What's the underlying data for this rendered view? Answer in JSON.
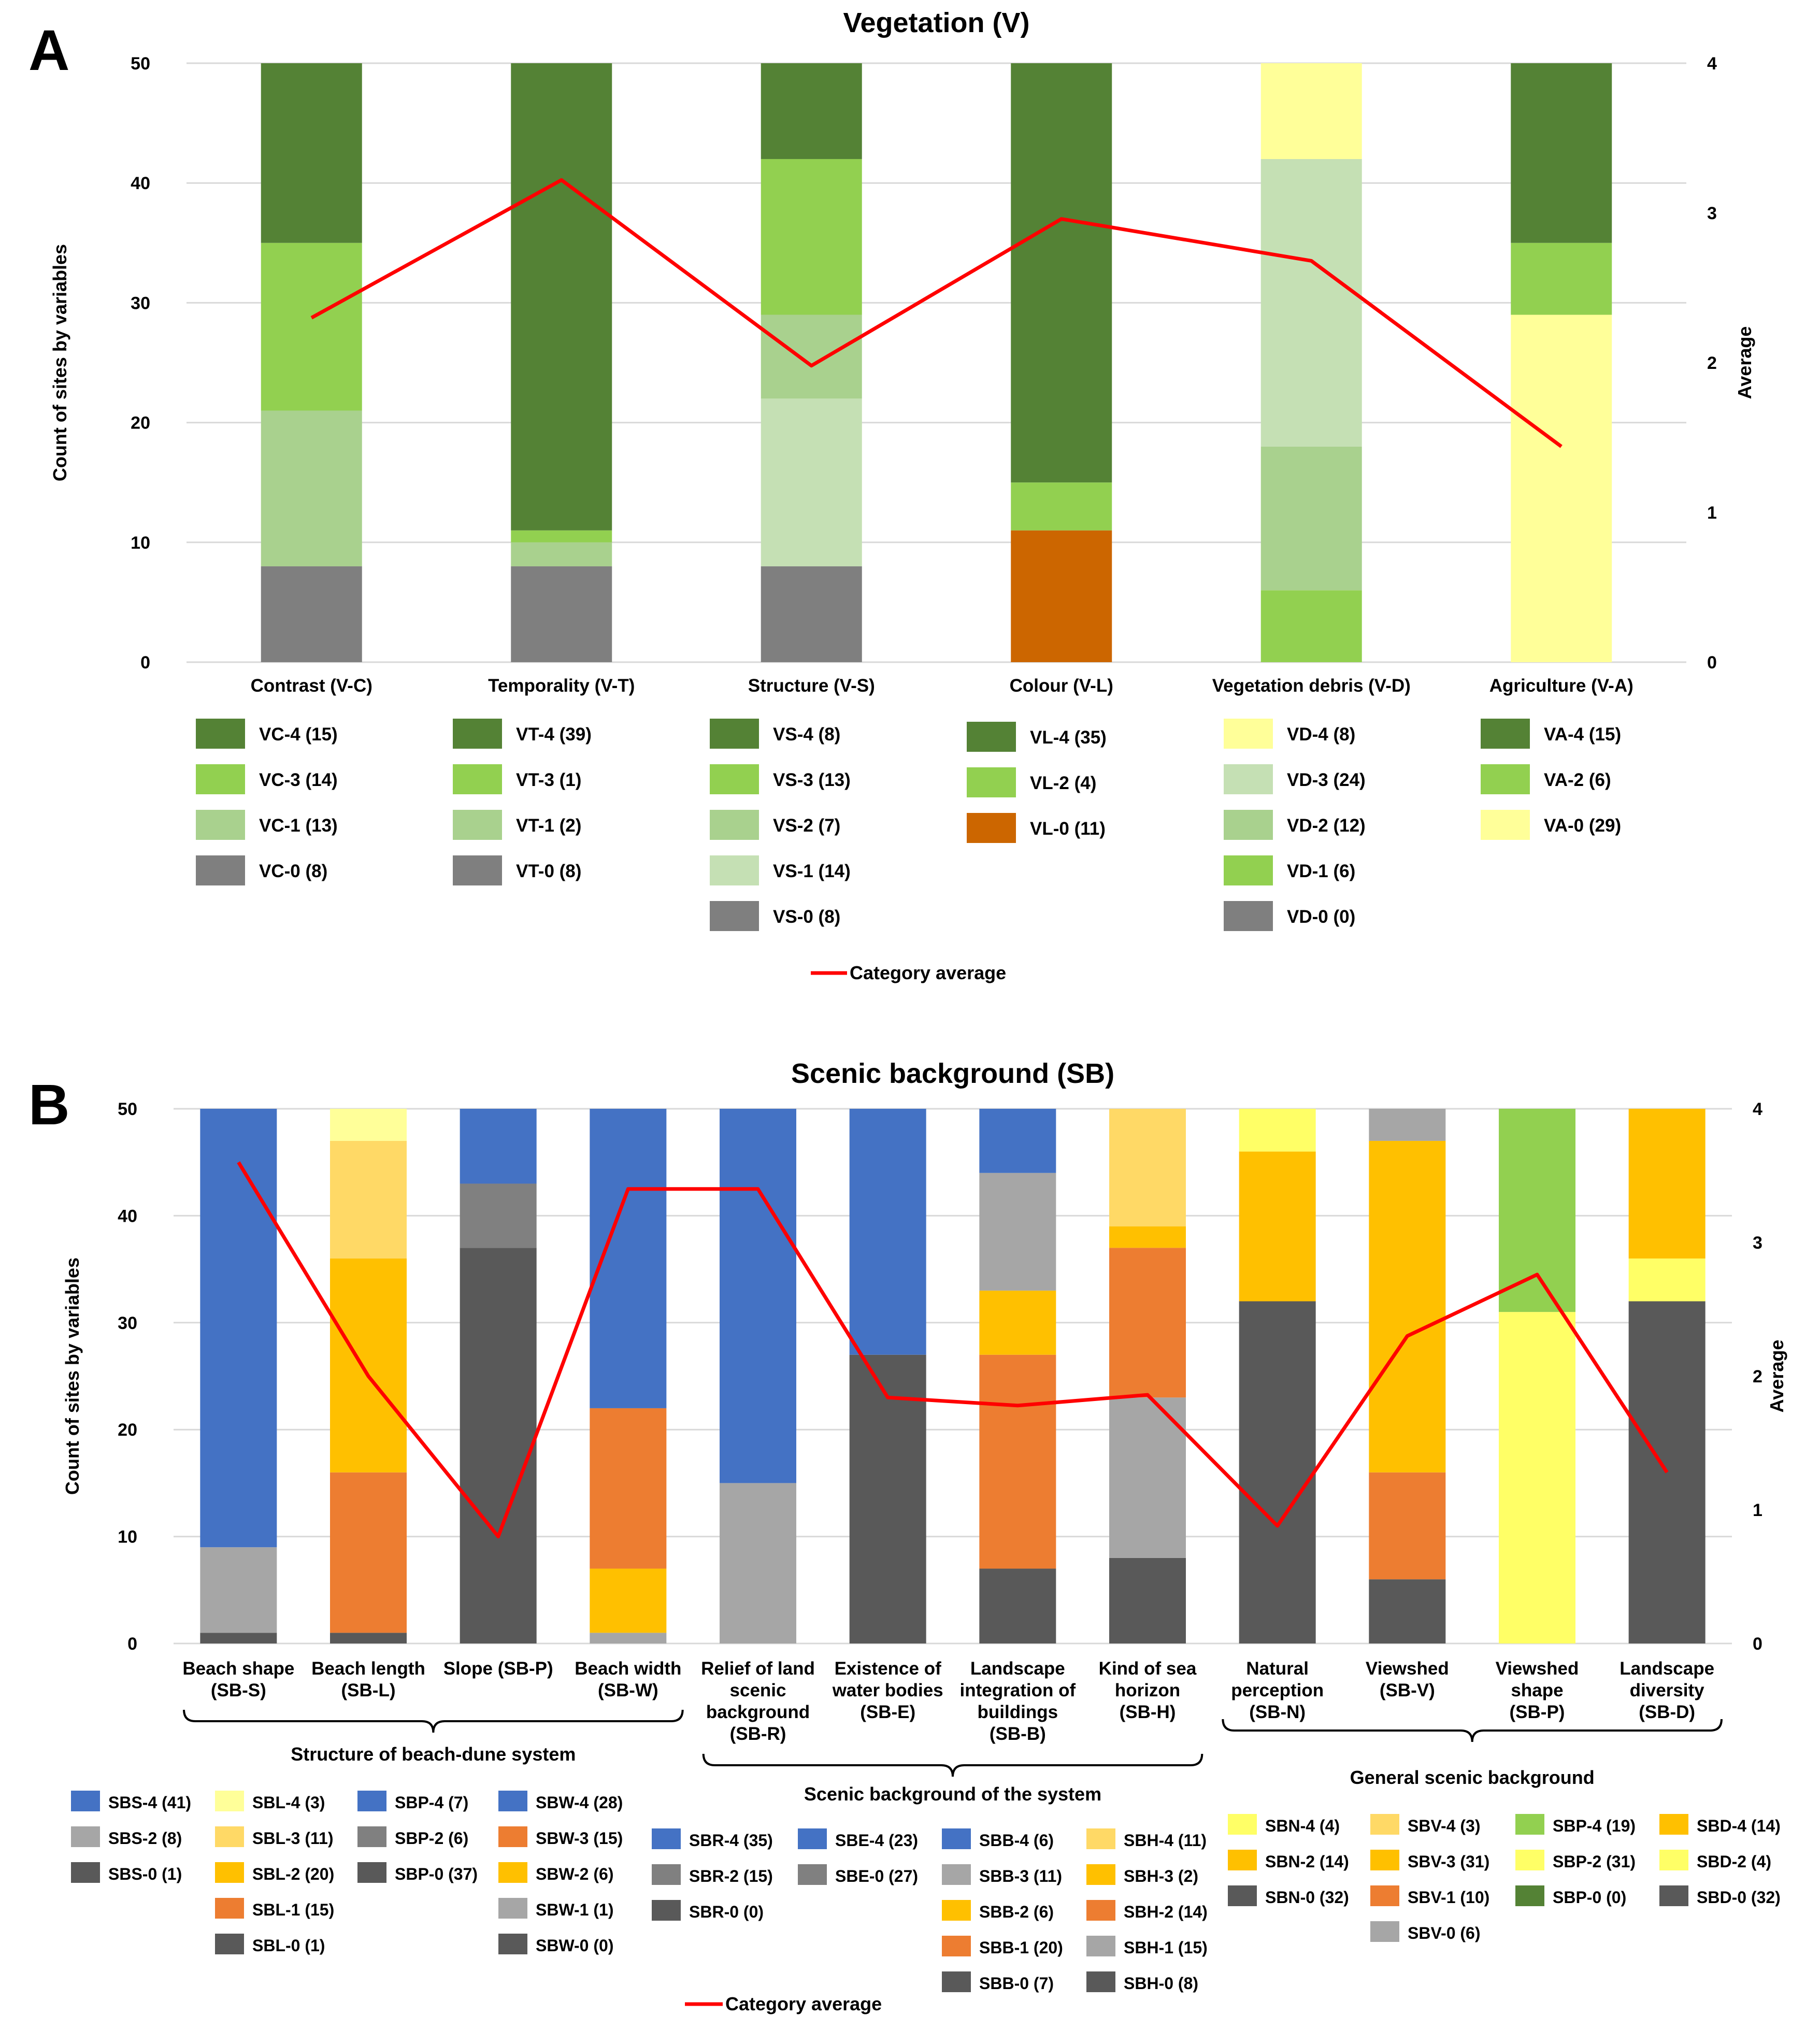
{
  "colors": {
    "green_dark": "#548235",
    "green_mid": "#92d050",
    "green_light": "#a9d18e",
    "green_pale": "#c5e0b4",
    "grey": "#7f7f7f",
    "grey_dark": "#595959",
    "grey_mid": "#808080",
    "grey_light": "#a6a6a6",
    "orange_brown": "#cc6600",
    "yellow_pale": "#ffff99",
    "blue": "#4472c4",
    "orange": "#ed7d31",
    "gold": "#ffc000",
    "gold_light": "#ffd966",
    "yellow": "#ffff66",
    "avg_line": "#ff0000",
    "gridline": "#d9d9d9",
    "text": "#000000"
  },
  "panels": {
    "A": {
      "label": "A"
    },
    "B": {
      "label": "B"
    }
  },
  "legend_line_label": "Category average",
  "chart_data": [
    {
      "id": "A",
      "type": "bar",
      "stacked": true,
      "title": "Vegetation (V)",
      "ylabel": "Count of sites by variables",
      "y2label": "Average",
      "ylim": [
        0,
        50
      ],
      "yticks": [
        0,
        10,
        20,
        30,
        40,
        50
      ],
      "y2lim": [
        0,
        4
      ],
      "y2ticks": [
        0,
        1,
        2,
        3,
        4
      ],
      "grid": true,
      "categories": [
        {
          "label": [
            "Contrast (V-C)"
          ],
          "average": 2.3,
          "segments": [
            {
              "name": "VC-0 (8)",
              "value": 8,
              "color": "grey"
            },
            {
              "name": "VC-1 (13)",
              "value": 13,
              "color": "green_light"
            },
            {
              "name": "VC-3 (14)",
              "value": 14,
              "color": "green_mid"
            },
            {
              "name": "VC-4 (15)",
              "value": 15,
              "color": "green_dark"
            }
          ]
        },
        {
          "label": [
            "Temporality (V-T)"
          ],
          "average": 3.22,
          "segments": [
            {
              "name": "VT-0 (8)",
              "value": 8,
              "color": "grey"
            },
            {
              "name": "VT-1 (2)",
              "value": 2,
              "color": "green_light"
            },
            {
              "name": "VT-3 (1)",
              "value": 1,
              "color": "green_mid"
            },
            {
              "name": "VT-4 (39)",
              "value": 39,
              "color": "green_dark"
            }
          ]
        },
        {
          "label": [
            "Structure (V-S)"
          ],
          "average": 1.98,
          "segments": [
            {
              "name": "VS-0 (8)",
              "value": 8,
              "color": "grey"
            },
            {
              "name": "VS-1 (14)",
              "value": 14,
              "color": "green_pale"
            },
            {
              "name": "VS-2 (7)",
              "value": 7,
              "color": "green_light"
            },
            {
              "name": "VS-3 (13)",
              "value": 13,
              "color": "green_mid"
            },
            {
              "name": "VS-4 (8)",
              "value": 8,
              "color": "green_dark"
            }
          ]
        },
        {
          "label": [
            "Colour (V-L)"
          ],
          "average": 2.96,
          "segments": [
            {
              "name": "VL-0 (11)",
              "value": 11,
              "color": "orange_brown"
            },
            {
              "name": "VL-2 (4)",
              "value": 4,
              "color": "green_mid"
            },
            {
              "name": "VL-4 (35)",
              "value": 35,
              "color": "green_dark"
            }
          ]
        },
        {
          "label": [
            "Vegetation debris (V-D)"
          ],
          "average": 2.68,
          "segments": [
            {
              "name": "VD-0 (0)",
              "value": 0,
              "color": "grey"
            },
            {
              "name": "VD-1 (6)",
              "value": 6,
              "color": "green_mid"
            },
            {
              "name": "VD-2 (12)",
              "value": 12,
              "color": "green_light"
            },
            {
              "name": "VD-3 (24)",
              "value": 24,
              "color": "green_pale"
            },
            {
              "name": "VD-4 (8)",
              "value": 8,
              "color": "yellow_pale"
            }
          ]
        },
        {
          "label": [
            "Agriculture (V-A)"
          ],
          "average": 1.44,
          "segments": [
            {
              "name": "VA-0 (29)",
              "value": 29,
              "color": "yellow_pale"
            },
            {
              "name": "VA-2 (6)",
              "value": 6,
              "color": "green_mid"
            },
            {
              "name": "VA-4 (15)",
              "value": 15,
              "color": "green_dark"
            }
          ]
        }
      ]
    },
    {
      "id": "B",
      "type": "bar",
      "stacked": true,
      "title": "Scenic background (SB)",
      "ylabel": "Count of sites by variables",
      "y2label": "Average",
      "ylim": [
        0,
        50
      ],
      "yticks": [
        0,
        10,
        20,
        30,
        40,
        50
      ],
      "y2lim": [
        0,
        4
      ],
      "y2ticks": [
        0,
        1,
        2,
        3,
        4
      ],
      "grid": true,
      "groups": [
        {
          "label": "Structure of beach-dune system",
          "from": 0,
          "to": 3
        },
        {
          "label": "Scenic background of the system",
          "from": 4,
          "to": 7
        },
        {
          "label": "General scenic background",
          "from": 8,
          "to": 11
        }
      ],
      "categories": [
        {
          "label": [
            "Beach shape",
            "(SB-S)"
          ],
          "average": 3.6,
          "segments": [
            {
              "name": "SBS-0 (1)",
              "value": 1,
              "color": "grey_dark"
            },
            {
              "name": "SBS-2 (8)",
              "value": 8,
              "color": "grey_light"
            },
            {
              "name": "SBS-4 (41)",
              "value": 41,
              "color": "blue"
            }
          ]
        },
        {
          "label": [
            "Beach length",
            "(SB-L)"
          ],
          "average": 2.0,
          "segments": [
            {
              "name": "SBL-0 (1)",
              "value": 1,
              "color": "grey_dark"
            },
            {
              "name": "SBL-1 (15)",
              "value": 15,
              "color": "orange"
            },
            {
              "name": "SBL-2 (20)",
              "value": 20,
              "color": "gold"
            },
            {
              "name": "SBL-3 (11)",
              "value": 11,
              "color": "gold_light"
            },
            {
              "name": "SBL-4 (3)",
              "value": 3,
              "color": "yellow_pale"
            }
          ]
        },
        {
          "label": [
            "Slope (SB-P)"
          ],
          "average": 0.8,
          "segments": [
            {
              "name": "SBP-0 (37)",
              "value": 37,
              "color": "grey_dark"
            },
            {
              "name": "SBP-2 (6)",
              "value": 6,
              "color": "grey_mid"
            },
            {
              "name": "SBP-4 (7)",
              "value": 7,
              "color": "blue"
            }
          ]
        },
        {
          "label": [
            "Beach width",
            "(SB-W)"
          ],
          "average": 3.4,
          "segments": [
            {
              "name": "SBW-0 (0)",
              "value": 0,
              "color": "grey_dark"
            },
            {
              "name": "SBW-1 (1)",
              "value": 1,
              "color": "grey_light"
            },
            {
              "name": "SBW-2 (6)",
              "value": 6,
              "color": "gold"
            },
            {
              "name": "SBW-3 (15)",
              "value": 15,
              "color": "orange"
            },
            {
              "name": "SBW-4 (28)",
              "value": 28,
              "color": "blue"
            }
          ]
        },
        {
          "label": [
            "Relief of land",
            "scenic",
            "background",
            "(SB-R)"
          ],
          "average": 3.4,
          "segments": [
            {
              "name": "SBR-0 (0)",
              "value": 0,
              "color": "grey_dark"
            },
            {
              "name": "SBR-2 (15)",
              "value": 15,
              "color": "grey_light"
            },
            {
              "name": "SBR-4 (35)",
              "value": 35,
              "color": "blue"
            }
          ]
        },
        {
          "label": [
            "Existence of",
            "water bodies",
            "(SB-E)"
          ],
          "average": 1.84,
          "segments": [
            {
              "name": "SBE-0 (27)",
              "value": 27,
              "color": "grey_dark"
            },
            {
              "name": "SBE-4 (23)",
              "value": 23,
              "color": "blue"
            }
          ]
        },
        {
          "label": [
            "Landscape",
            "integration of",
            "buildings",
            "(SB-B)"
          ],
          "average": 1.78,
          "segments": [
            {
              "name": "SBB-0 (7)",
              "value": 7,
              "color": "grey_dark"
            },
            {
              "name": "SBB-1 (20)",
              "value": 20,
              "color": "orange"
            },
            {
              "name": "SBB-2 (6)",
              "value": 6,
              "color": "gold"
            },
            {
              "name": "SBB-3 (11)",
              "value": 11,
              "color": "grey_light"
            },
            {
              "name": "SBB-4 (6)",
              "value": 6,
              "color": "blue"
            }
          ]
        },
        {
          "label": [
            "Kind of sea",
            "horizon",
            "(SB-H)"
          ],
          "average": 1.86,
          "segments": [
            {
              "name": "SBH-0 (8)",
              "value": 8,
              "color": "grey_dark"
            },
            {
              "name": "SBH-1 (15)",
              "value": 15,
              "color": "grey_light"
            },
            {
              "name": "SBH-2 (14)",
              "value": 14,
              "color": "orange"
            },
            {
              "name": "SBH-3 (2)",
              "value": 2,
              "color": "gold"
            },
            {
              "name": "SBH-4 (11)",
              "value": 11,
              "color": "gold_light"
            }
          ]
        },
        {
          "label": [
            "Natural",
            "perception",
            "(SB-N)"
          ],
          "average": 0.88,
          "segments": [
            {
              "name": "SBN-0 (32)",
              "value": 32,
              "color": "grey_dark"
            },
            {
              "name": "SBN-2 (14)",
              "value": 14,
              "color": "gold"
            },
            {
              "name": "SBN-4 (4)",
              "value": 4,
              "color": "yellow"
            }
          ]
        },
        {
          "label": [
            "Viewshed",
            "(SB-V)"
          ],
          "average": 2.3,
          "segments": [
            {
              "name": "SBV-0 (6)",
              "value": 6,
              "color": "grey_dark"
            },
            {
              "name": "SBV-1 (10)",
              "value": 10,
              "color": "orange"
            },
            {
              "name": "SBV-3 (31)",
              "value": 31,
              "color": "gold"
            },
            {
              "name": "SBV-4 (3)",
              "value": 3,
              "color": "grey_light"
            }
          ]
        },
        {
          "label": [
            "Viewshed",
            "shape",
            "(SB-P)"
          ],
          "average": 2.76,
          "segments": [
            {
              "name": "SBP-0 (0)",
              "value": 0,
              "color": "green_dark"
            },
            {
              "name": "SBP-2 (31)",
              "value": 31,
              "color": "yellow"
            },
            {
              "name": "SBP-4 (19)",
              "value": 19,
              "color": "green_mid"
            }
          ]
        },
        {
          "label": [
            "Landscape",
            "diversity",
            "(SB-D)"
          ],
          "average": 1.28,
          "segments": [
            {
              "name": "SBD-0 (32)",
              "value": 32,
              "color": "grey_dark"
            },
            {
              "name": "SBD-2 (4)",
              "value": 4,
              "color": "yellow"
            },
            {
              "name": "SBD-4 (14)",
              "value": 14,
              "color": "gold"
            }
          ]
        }
      ]
    }
  ],
  "legends": {
    "A": [
      [
        {
          "label": "VC-4 (15)",
          "color": "green_dark"
        },
        {
          "label": "VC-3 (14)",
          "color": "green_mid"
        },
        {
          "label": "VC-1 (13)",
          "color": "green_light"
        },
        {
          "label": "VC-0 (8)",
          "color": "grey"
        }
      ],
      [
        {
          "label": "VT-4 (39)",
          "color": "green_dark"
        },
        {
          "label": "VT-3 (1)",
          "color": "green_mid"
        },
        {
          "label": "VT-1 (2)",
          "color": "green_light"
        },
        {
          "label": "VT-0 (8)",
          "color": "grey"
        }
      ],
      [
        {
          "label": "VS-4 (8)",
          "color": "green_dark"
        },
        {
          "label": "VS-3 (13)",
          "color": "green_mid"
        },
        {
          "label": "VS-2 (7)",
          "color": "green_light"
        },
        {
          "label": "VS-1 (14)",
          "color": "green_pale"
        },
        {
          "label": "VS-0 (8)",
          "color": "grey"
        }
      ],
      [
        {
          "label": "VL-4 (35)",
          "color": "green_dark"
        },
        {
          "label": "VL-2 (4)",
          "color": "green_mid"
        },
        {
          "label": "VL-0 (11)",
          "color": "orange_brown"
        }
      ],
      [
        {
          "label": "VD-4 (8)",
          "color": "yellow_pale"
        },
        {
          "label": "VD-3 (24)",
          "color": "green_pale"
        },
        {
          "label": "VD-2 (12)",
          "color": "green_light"
        },
        {
          "label": "VD-1 (6)",
          "color": "green_mid"
        },
        {
          "label": "VD-0 (0)",
          "color": "grey"
        }
      ],
      [
        {
          "label": "VA-4 (15)",
          "color": "green_dark"
        },
        {
          "label": "VA-2 (6)",
          "color": "green_mid"
        },
        {
          "label": "VA-0 (29)",
          "color": "yellow_pale"
        }
      ]
    ],
    "B": [
      [
        {
          "label": "SBS-4 (41)",
          "color": "blue"
        },
        {
          "label": "SBS-2 (8)",
          "color": "grey_light"
        },
        {
          "label": "SBS-0 (1)",
          "color": "grey_dark"
        }
      ],
      [
        {
          "label": "SBL-4 (3)",
          "color": "yellow_pale"
        },
        {
          "label": "SBL-3 (11)",
          "color": "gold_light"
        },
        {
          "label": "SBL-2 (20)",
          "color": "gold"
        },
        {
          "label": "SBL-1 (15)",
          "color": "orange"
        },
        {
          "label": "SBL-0 (1)",
          "color": "grey_dark"
        }
      ],
      [
        {
          "label": "SBP-4 (7)",
          "color": "blue"
        },
        {
          "label": "SBP-2 (6)",
          "color": "grey_mid"
        },
        {
          "label": "SBP-0 (37)",
          "color": "grey_dark"
        }
      ],
      [
        {
          "label": "SBW-4 (28)",
          "color": "blue"
        },
        {
          "label": "SBW-3 (15)",
          "color": "orange"
        },
        {
          "label": "SBW-2 (6)",
          "color": "gold"
        },
        {
          "label": "SBW-1 (1)",
          "color": "grey_light"
        },
        {
          "label": "SBW-0 (0)",
          "color": "grey_dark"
        }
      ],
      [
        {
          "label": "SBR-4 (35)",
          "color": "blue"
        },
        {
          "label": "SBR-2 (15)",
          "color": "grey_mid"
        },
        {
          "label": "SBR-0 (0)",
          "color": "grey_dark"
        }
      ],
      [
        {
          "label": "SBE-4 (23)",
          "color": "blue"
        },
        {
          "label": "SBE-0 (27)",
          "color": "grey_mid"
        }
      ],
      [
        {
          "label": "SBB-4 (6)",
          "color": "blue"
        },
        {
          "label": "SBB-3 (11)",
          "color": "grey_light"
        },
        {
          "label": "SBB-2 (6)",
          "color": "gold"
        },
        {
          "label": "SBB-1 (20)",
          "color": "orange"
        },
        {
          "label": "SBB-0 (7)",
          "color": "grey_dark"
        }
      ],
      [
        {
          "label": "SBH-4 (11)",
          "color": "gold_light"
        },
        {
          "label": "SBH-3 (2)",
          "color": "gold"
        },
        {
          "label": "SBH-2 (14)",
          "color": "orange"
        },
        {
          "label": "SBH-1 (15)",
          "color": "grey_light"
        },
        {
          "label": "SBH-0 (8)",
          "color": "grey_dark"
        }
      ],
      [
        {
          "label": "SBN-4 (4)",
          "color": "yellow"
        },
        {
          "label": "SBN-2 (14)",
          "color": "gold"
        },
        {
          "label": "SBN-0 (32)",
          "color": "grey_dark"
        }
      ],
      [
        {
          "label": "SBV-4 (3)",
          "color": "gold_light"
        },
        {
          "label": "SBV-3 (31)",
          "color": "gold"
        },
        {
          "label": "SBV-1 (10)",
          "color": "orange"
        },
        {
          "label": "SBV-0 (6)",
          "color": "grey_light"
        }
      ],
      [
        {
          "label": "SBP-4 (19)",
          "color": "green_mid"
        },
        {
          "label": "SBP-2 (31)",
          "color": "yellow"
        },
        {
          "label": "SBP-0 (0)",
          "color": "green_dark"
        }
      ],
      [
        {
          "label": "SBD-4 (14)",
          "color": "gold"
        },
        {
          "label": "SBD-2 (4)",
          "color": "yellow"
        },
        {
          "label": "SBD-0 (32)",
          "color": "grey_dark"
        }
      ]
    ]
  }
}
